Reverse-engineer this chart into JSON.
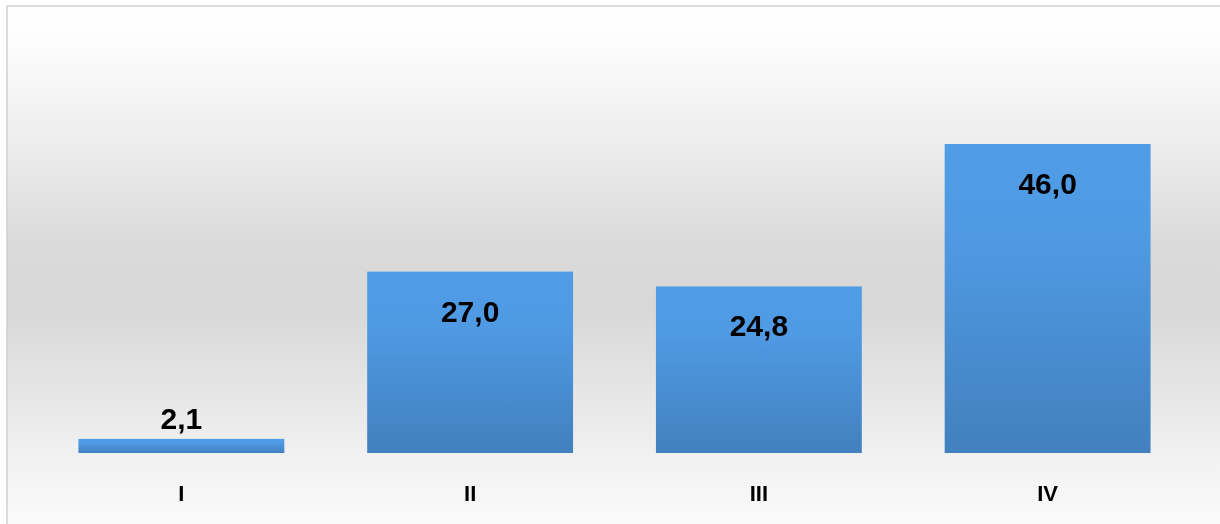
{
  "chart_data": {
    "type": "bar",
    "categories": [
      "I",
      "II",
      "III",
      "IV"
    ],
    "values": [
      2.1,
      27.0,
      24.8,
      46.0
    ],
    "color": "#4a8fd3",
    "value_labels": [
      "2,1",
      "27,0",
      "24,8",
      "46,0"
    ]
  }
}
